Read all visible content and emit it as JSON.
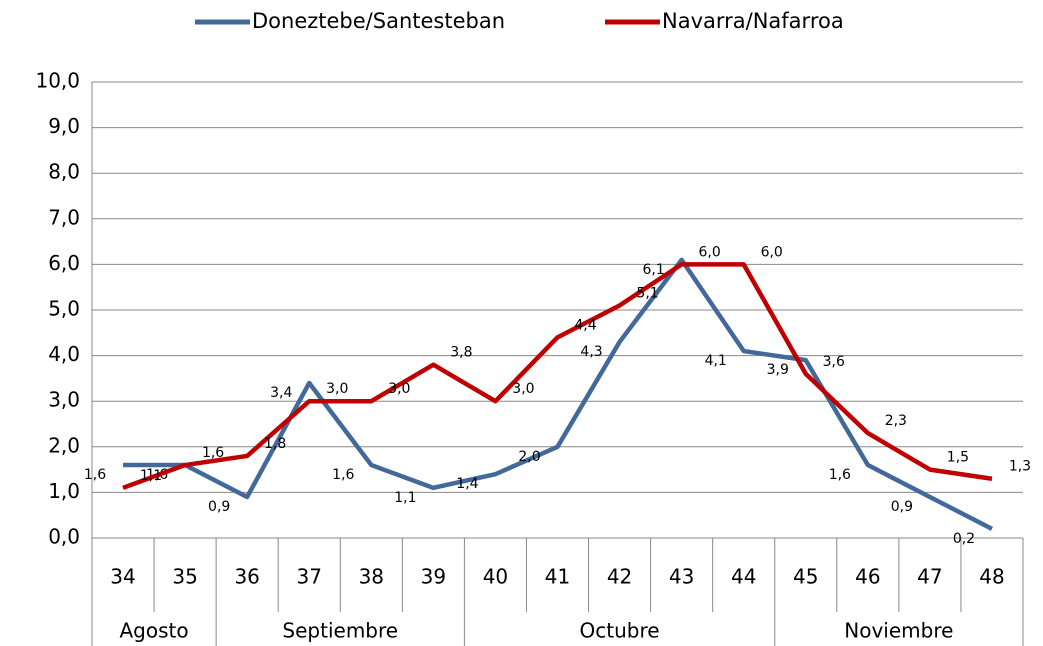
{
  "chart_data": {
    "type": "line",
    "categories": [
      "34",
      "35",
      "36",
      "37",
      "38",
      "39",
      "40",
      "41",
      "42",
      "43",
      "44",
      "45",
      "46",
      "47",
      "48"
    ],
    "category_groups": [
      "Agosto",
      null,
      "Septiembre",
      null,
      null,
      null,
      "Octubre",
      null,
      null,
      null,
      null,
      "Noviembre",
      null,
      null,
      null
    ],
    "series": [
      {
        "name": "Doneztebe/Santesteban",
        "color": "#43689a",
        "values": [
          1.6,
          1.6,
          0.9,
          3.4,
          1.6,
          1.1,
          1.4,
          2.0,
          4.3,
          6.1,
          4.1,
          3.9,
          1.6,
          0.9,
          0.2
        ],
        "value_labels": [
          "1,6",
          "1,6",
          "0,9",
          "3,4",
          "1,6",
          "1,1",
          "1,4",
          "2,0",
          "4,3",
          "6,1",
          "4,1",
          "3,9",
          "1,6",
          "0,9",
          "0,2"
        ]
      },
      {
        "name": "Navarra/Nafarroa",
        "color": "#c00000",
        "values": [
          1.1,
          1.6,
          1.8,
          3.0,
          3.0,
          3.8,
          3.0,
          4.4,
          5.1,
          6.0,
          6.0,
          3.6,
          2.3,
          1.5,
          1.3
        ],
        "value_labels": [
          "1,1",
          "1,6",
          "1,8",
          "3,0",
          "3,0",
          "3,8",
          "3,0",
          "4,4",
          "5,1",
          "6,0",
          "6,0",
          "3,6",
          "2,3",
          "1,5",
          "1,3"
        ]
      }
    ],
    "ylim": [
      0,
      10
    ],
    "yticks": [
      {
        "value": 0,
        "label": "0,0"
      },
      {
        "value": 1,
        "label": "1,0"
      },
      {
        "value": 2,
        "label": "2,0"
      },
      {
        "value": 3,
        "label": "3,0"
      },
      {
        "value": 4,
        "label": "4,0"
      },
      {
        "value": 5,
        "label": "5,0"
      },
      {
        "value": 6,
        "label": "6,0"
      },
      {
        "value": 7,
        "label": "7,0"
      },
      {
        "value": 8,
        "label": "8,0"
      },
      {
        "value": 9,
        "label": "9,0"
      },
      {
        "value": 10,
        "label": "10,0"
      }
    ],
    "grid": true,
    "legend": "top"
  }
}
